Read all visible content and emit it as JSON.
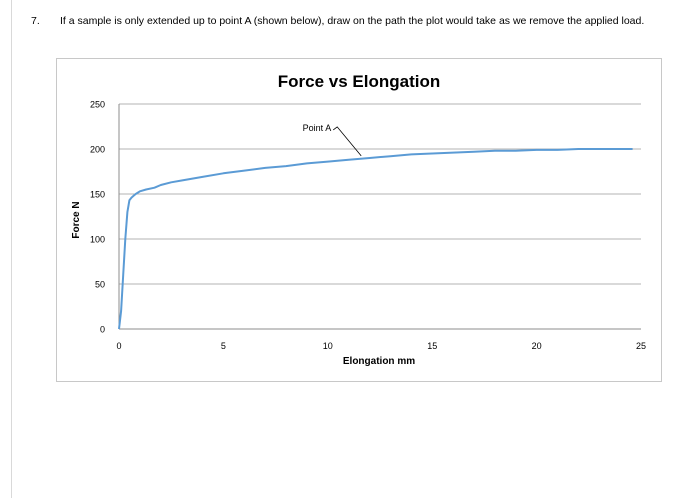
{
  "question": {
    "number": "7.",
    "text": "If a sample is only extended up to point A (shown below), draw on the path the plot would take as we remove the applied load."
  },
  "chart_data": {
    "type": "line",
    "title": "Force vs Elongation",
    "xlabel": "Elongation mm",
    "ylabel": "Force N",
    "xlim": [
      0,
      25
    ],
    "ylim": [
      0,
      250
    ],
    "x_ticks": [
      "0",
      "5",
      "10",
      "15",
      "20",
      "25"
    ],
    "y_ticks": [
      "0",
      "50",
      "100",
      "150",
      "200",
      "250"
    ],
    "grid": "horizontal",
    "legend": "none",
    "series": [
      {
        "color": "#5b9bd5",
        "x": [
          0,
          0.1,
          0.2,
          0.3,
          0.4,
          0.5,
          0.6,
          0.7,
          0.8,
          1.0,
          1.3,
          1.7,
          2.0,
          2.5,
          3,
          4,
          5,
          6,
          7,
          8,
          9,
          10,
          11,
          12,
          13,
          14,
          15,
          16,
          17,
          18,
          19,
          20,
          21,
          22,
          23,
          24,
          24.6
        ],
        "y": [
          0,
          20,
          60,
          100,
          130,
          143,
          146,
          148,
          150,
          153,
          155,
          157,
          160,
          163,
          165,
          169,
          173,
          176,
          179,
          181,
          184,
          186,
          188,
          190,
          192,
          194,
          195,
          196,
          197,
          198,
          198,
          199,
          199,
          200,
          200,
          200,
          200
        ]
      }
    ],
    "annotations": [
      {
        "text": "Point A",
        "x": 11.6,
        "y": 189
      }
    ]
  }
}
